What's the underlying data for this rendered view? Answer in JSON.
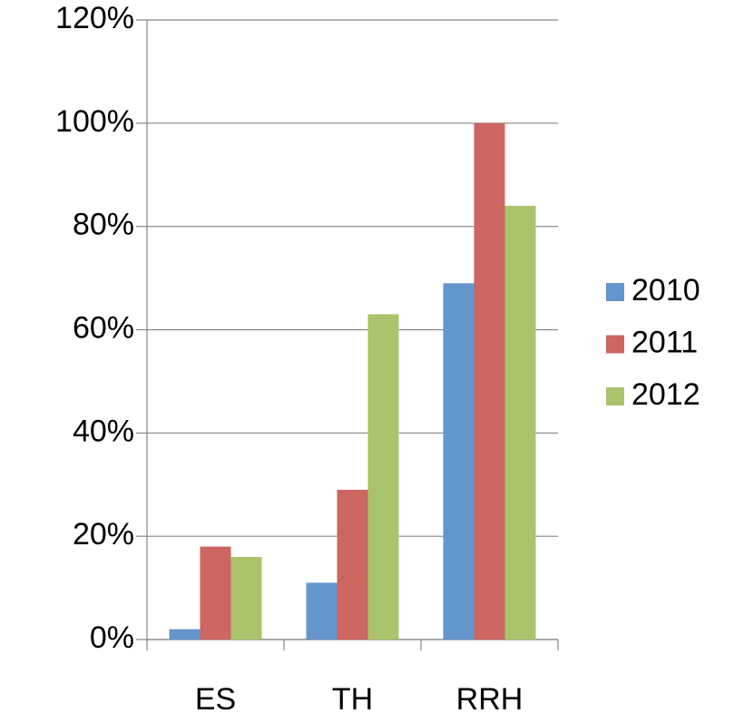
{
  "chart_data": {
    "type": "bar",
    "categories": [
      "ES",
      "TH",
      "RRH"
    ],
    "series": [
      {
        "name": "2010",
        "color": "#6495cd",
        "values": [
          2,
          11,
          69
        ]
      },
      {
        "name": "2011",
        "color": "#cd6560",
        "values": [
          18,
          29,
          100
        ]
      },
      {
        "name": "2012",
        "color": "#a9c46b",
        "values": [
          16,
          63,
          84
        ]
      }
    ],
    "ylim": [
      0,
      120
    ],
    "yticks": [
      {
        "value": 0,
        "label": "0%"
      },
      {
        "value": 20,
        "label": "20%"
      },
      {
        "value": 40,
        "label": "40%"
      },
      {
        "value": 60,
        "label": "60%"
      },
      {
        "value": 80,
        "label": "80%"
      },
      {
        "value": 100,
        "label": "100%"
      },
      {
        "value": 120,
        "label": "120%"
      }
    ],
    "grid": true,
    "legend": "right"
  }
}
